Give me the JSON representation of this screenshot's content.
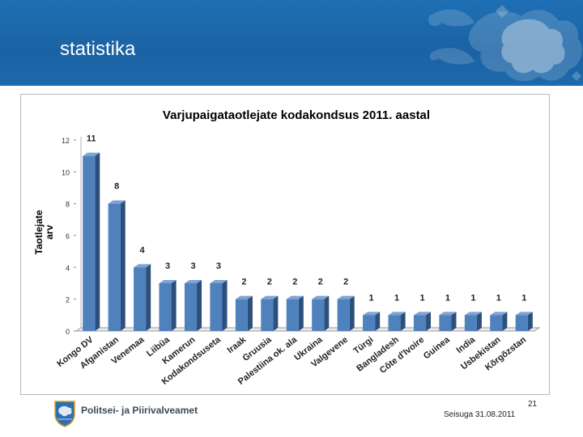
{
  "slide": {
    "title": "statistika",
    "number": "21",
    "footer_org": "Politsei- ja Piirivalveamet",
    "footer_date": "Seisuga 31.08.2011"
  },
  "colors": {
    "header_blue": "#1f6fb4",
    "bar_front": "#4f81bd",
    "bar_side": "#2c4f7c",
    "bar_top": "#7ea3d4"
  },
  "chart_data": {
    "type": "bar",
    "title": "Varjupaigataotlejate kodakondsus 2011. aastal",
    "ylabel": "Taotlejate arv",
    "ylabel_lines": [
      "Taotlejate",
      "arv"
    ],
    "xlabel": "",
    "ylim": [
      0,
      12
    ],
    "yticks": [
      0,
      2,
      4,
      6,
      8,
      10,
      12
    ],
    "categories": [
      "Kongo DV",
      "Afganistan",
      "Venemaa",
      "Liibüa",
      "Kamerun",
      "Kodakondsuseta",
      "Iraak",
      "Gruusia",
      "Palestiina ok. ala",
      "Ukraina",
      "Valgevene",
      "Türgi",
      "Bangladesh",
      "Côte d'Ivoire",
      "Guinea",
      "India",
      "Usbekistan",
      "Kõrgõzstan"
    ],
    "values": [
      11,
      8,
      4,
      3,
      3,
      3,
      2,
      2,
      2,
      2,
      2,
      1,
      1,
      1,
      1,
      1,
      1,
      1
    ],
    "legend": "none",
    "grid": false
  }
}
